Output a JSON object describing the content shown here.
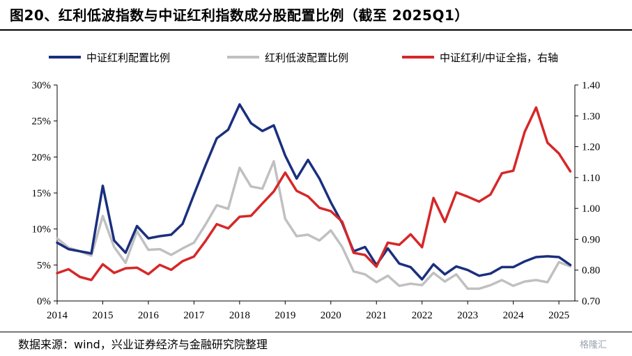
{
  "title": "图20、红利低波指数与中证红利指数成分股配置比例（截至 2025Q1）",
  "source": "数据来源：wind，兴业证券经济与金融研究院整理",
  "watermark": "格隆汇",
  "chart_data": {
    "type": "line",
    "title": "",
    "xlabel": "",
    "ylabel": "",
    "x_ticks": [
      "2014",
      "2015",
      "2016",
      "2017",
      "2018",
      "2019",
      "2020",
      "2021",
      "2022",
      "2023",
      "2024",
      "2025"
    ],
    "y_left": {
      "range": [
        0,
        30
      ],
      "ticks": [
        "0%",
        "5%",
        "10%",
        "15%",
        "20%",
        "25%",
        "30%"
      ]
    },
    "y_right": {
      "range": [
        0.7,
        1.4
      ],
      "ticks": [
        "0.70",
        "0.80",
        "0.90",
        "1.00",
        "1.10",
        "1.20",
        "1.30",
        "1.40"
      ]
    },
    "legend": "top",
    "grid": false,
    "series": [
      {
        "name": "中证红利配置比例",
        "color": "#1a2f7e",
        "axis": "left",
        "x": [
          2014.0,
          2014.25,
          2014.5,
          2014.75,
          2015.0,
          2015.25,
          2015.5,
          2015.75,
          2016.0,
          2016.25,
          2016.5,
          2016.75,
          2017.0,
          2017.25,
          2017.5,
          2017.75,
          2018.0,
          2018.25,
          2018.5,
          2018.75,
          2019.0,
          2019.25,
          2019.5,
          2019.75,
          2020.0,
          2020.25,
          2020.5,
          2020.75,
          2021.0,
          2021.25,
          2021.5,
          2021.75,
          2022.0,
          2022.25,
          2022.5,
          2022.75,
          2023.0,
          2023.25,
          2023.5,
          2023.75,
          2024.0,
          2024.25,
          2024.5,
          2024.75,
          2025.0,
          2025.25
        ],
        "values": [
          8.1,
          7.2,
          6.9,
          6.6,
          16.0,
          8.4,
          6.7,
          10.4,
          8.7,
          9.0,
          9.2,
          10.7,
          14.8,
          18.8,
          22.6,
          23.8,
          27.3,
          24.7,
          23.6,
          24.4,
          20.2,
          17.0,
          19.6,
          17.0,
          13.7,
          10.8,
          6.9,
          7.5,
          5.0,
          7.3,
          5.2,
          4.7,
          3.0,
          5.1,
          3.7,
          4.8,
          4.3,
          3.5,
          3.8,
          4.7,
          4.7,
          5.5,
          6.1,
          6.2,
          6.1,
          5.0
        ]
      },
      {
        "name": "红利低波配置比例",
        "color": "#c0c0c0",
        "axis": "left",
        "x": [
          2014.0,
          2014.25,
          2014.5,
          2014.75,
          2015.0,
          2015.25,
          2015.5,
          2015.75,
          2016.0,
          2016.25,
          2016.5,
          2016.75,
          2017.0,
          2017.25,
          2017.5,
          2017.75,
          2018.0,
          2018.25,
          2018.5,
          2018.75,
          2019.0,
          2019.25,
          2019.5,
          2019.75,
          2020.0,
          2020.25,
          2020.5,
          2020.75,
          2021.0,
          2021.25,
          2021.5,
          2021.75,
          2022.0,
          2022.25,
          2022.5,
          2022.75,
          2023.0,
          2023.25,
          2023.5,
          2023.75,
          2024.0,
          2024.25,
          2024.5,
          2024.75,
          2025.0,
          2025.25
        ],
        "values": [
          8.7,
          7.4,
          6.9,
          6.3,
          11.8,
          7.5,
          5.3,
          9.7,
          7.1,
          7.2,
          6.4,
          7.3,
          8.1,
          10.6,
          13.3,
          12.8,
          18.5,
          15.9,
          15.6,
          19.4,
          11.4,
          9.0,
          9.2,
          8.4,
          9.8,
          7.5,
          4.1,
          3.7,
          2.6,
          3.5,
          2.1,
          2.4,
          2.2,
          3.9,
          2.7,
          3.7,
          1.7,
          1.7,
          2.2,
          2.9,
          2.1,
          2.7,
          2.9,
          2.6,
          5.4,
          4.8
        ]
      },
      {
        "name": "中证红利/中证全指，右轴",
        "color": "#d62728",
        "axis": "right",
        "x": [
          2014.0,
          2014.25,
          2014.5,
          2014.75,
          2015.0,
          2015.25,
          2015.5,
          2015.75,
          2016.0,
          2016.25,
          2016.5,
          2016.75,
          2017.0,
          2017.25,
          2017.5,
          2017.75,
          2018.0,
          2018.25,
          2018.5,
          2018.75,
          2019.0,
          2019.25,
          2019.5,
          2019.75,
          2020.0,
          2020.25,
          2020.5,
          2020.75,
          2021.0,
          2021.25,
          2021.5,
          2021.75,
          2022.0,
          2022.25,
          2022.5,
          2022.75,
          2023.0,
          2023.25,
          2023.5,
          2023.75,
          2024.0,
          2024.25,
          2024.5,
          2024.75,
          2025.0,
          2025.25
        ],
        "values": [
          0.79,
          0.803,
          0.778,
          0.768,
          0.819,
          0.791,
          0.806,
          0.808,
          0.787,
          0.817,
          0.801,
          0.829,
          0.844,
          0.894,
          0.949,
          0.935,
          0.973,
          0.976,
          1.016,
          1.055,
          1.116,
          1.057,
          1.039,
          1.002,
          0.991,
          0.957,
          0.856,
          0.849,
          0.811,
          0.889,
          0.882,
          0.916,
          0.874,
          1.034,
          0.956,
          1.052,
          1.038,
          1.022,
          1.045,
          1.114,
          1.122,
          1.248,
          1.327,
          1.213,
          1.178,
          1.12
        ]
      }
    ]
  }
}
